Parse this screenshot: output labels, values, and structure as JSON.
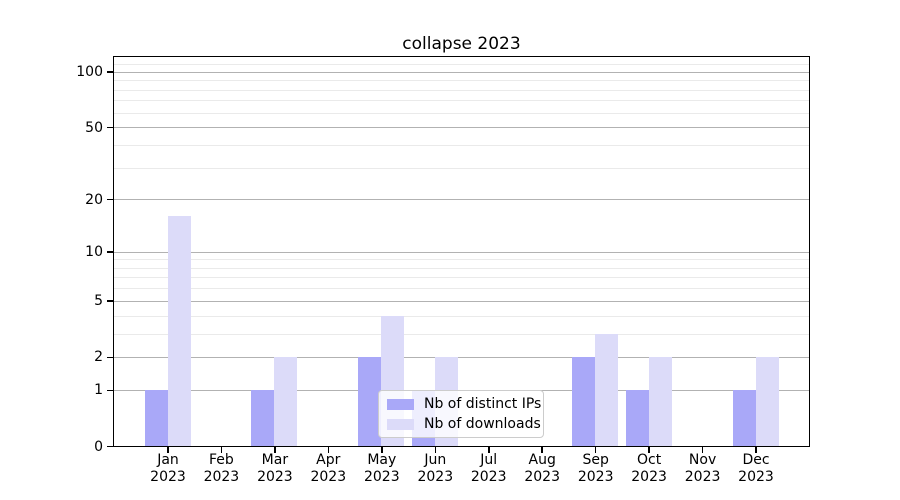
{
  "chart_data": {
    "type": "bar",
    "title": "collapse 2023",
    "categories": [
      "Jan",
      "Feb",
      "Mar",
      "Apr",
      "May",
      "Jun",
      "Jul",
      "Aug",
      "Sep",
      "Oct",
      "Nov",
      "Dec"
    ],
    "category_year": "2023",
    "series": [
      {
        "name": "Nb of distinct IPs",
        "color": "#a9a8f8",
        "values": [
          1,
          0,
          1,
          0,
          2,
          1,
          0,
          0,
          2,
          1,
          0,
          1
        ]
      },
      {
        "name": "Nb of downloads",
        "color": "#dcdbf9",
        "values": [
          16,
          0,
          2,
          0,
          4,
          2,
          0,
          0,
          3,
          2,
          0,
          2
        ]
      }
    ],
    "yscale": "log1p",
    "ylim": [
      0,
      120
    ],
    "ytick_values": [
      0,
      1,
      2,
      5,
      10,
      20,
      50,
      100
    ],
    "yminor_values": [
      3,
      4,
      6,
      7,
      8,
      9,
      30,
      40,
      60,
      70,
      80,
      90,
      110
    ],
    "grid": {
      "major_color": "#b2b2b2",
      "minor_color": "#eaeaea"
    },
    "legend": {
      "position": "lower center"
    },
    "xlabel": "",
    "ylabel": ""
  }
}
